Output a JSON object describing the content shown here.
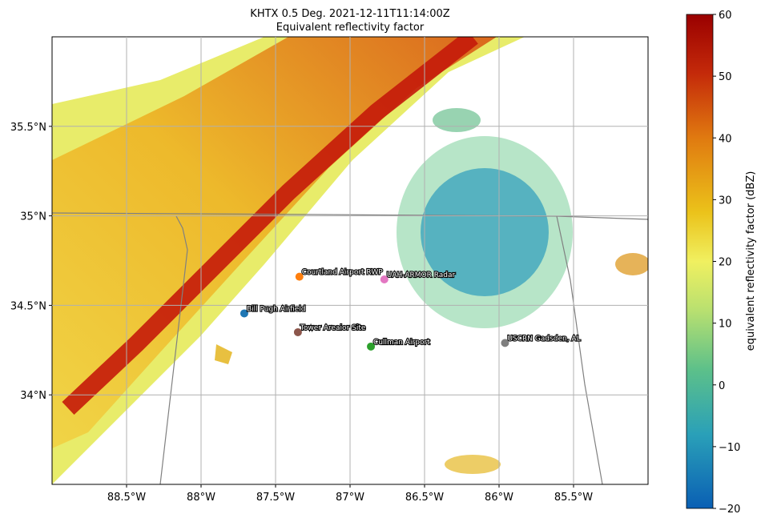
{
  "title": "KHTX 0.5 Deg. 2021-12-11T11:14:00Z",
  "subtitle": "Equivalent reflectivity factor",
  "xlim": [
    -89,
    -85
  ],
  "ylim": [
    33.5,
    36
  ],
  "xticks": [
    {
      "value": -88.5,
      "label": "88.5°W"
    },
    {
      "value": -88,
      "label": "88°W"
    },
    {
      "value": -87.5,
      "label": "87.5°W"
    },
    {
      "value": -87,
      "label": "87°W"
    },
    {
      "value": -86.5,
      "label": "86.5°W"
    },
    {
      "value": -86,
      "label": "86°W"
    },
    {
      "value": -85.5,
      "label": "85.5°W"
    }
  ],
  "yticks": [
    {
      "value": 34,
      "label": "34°N"
    },
    {
      "value": 34.5,
      "label": "34.5°N"
    },
    {
      "value": 35,
      "label": "35°N"
    },
    {
      "value": 35.5,
      "label": "35.5°N"
    }
  ],
  "grid": true,
  "sites": [
    {
      "name": "Bill Pugh Airfield",
      "lon": -87.71,
      "lat": 34.455,
      "color": "#1f77b4"
    },
    {
      "name": "Courtland Airport RWP",
      "lon": -87.34,
      "lat": 34.66,
      "color": "#ff7f0e"
    },
    {
      "name": "Cullman Airport",
      "lon": -86.86,
      "lat": 34.27,
      "color": "#2ca02c"
    },
    {
      "name": "Tower Areaior Site",
      "lon": -87.35,
      "lat": 34.35,
      "color": "#8c564b"
    },
    {
      "name": "UAH-ARMOR Radar",
      "lon": -86.77,
      "lat": 34.645,
      "color": "#e377c2"
    },
    {
      "name": "USCRN Gadsden, AL",
      "lon": -85.96,
      "lat": 34.29,
      "color": "#7f7f7f"
    }
  ],
  "colorbar": {
    "label": "equivalent reflectivity factor (dBZ)",
    "lim": [
      -20,
      60
    ],
    "ticks": [
      {
        "value": -20,
        "label": "−20"
      },
      {
        "value": -10,
        "label": "−10"
      },
      0,
      10,
      20,
      30,
      40,
      50,
      60
    ]
  }
}
